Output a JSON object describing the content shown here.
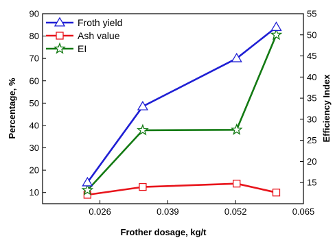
{
  "chart_data": {
    "type": "line",
    "title": "",
    "xlabel": "Frother dosage, kg/t",
    "ylabel": "Percentage, %",
    "y2label": "Efficiency Index",
    "xlim": [
      0.015,
      0.065
    ],
    "ylim": [
      5,
      90
    ],
    "y2lim": [
      10,
      55
    ],
    "x_ticks": [
      0.026,
      0.039,
      0.052,
      0.065
    ],
    "x_tick_labels": [
      "0.026",
      "0.039",
      "0.052",
      "0.065"
    ],
    "y_ticks": [
      10,
      20,
      30,
      40,
      50,
      60,
      70,
      80,
      90
    ],
    "y_tick_labels": [
      "10",
      "20",
      "30",
      "40",
      "50",
      "60",
      "70",
      "80",
      "90"
    ],
    "y2_ticks": [
      15,
      20,
      25,
      30,
      35,
      40,
      45,
      50,
      55
    ],
    "y2_tick_labels": [
      "15",
      "20",
      "25",
      "30",
      "35",
      "40",
      "45",
      "50",
      "55"
    ],
    "grid": false,
    "legend_position": "top-left",
    "x": [
      0.0236,
      0.0342,
      0.0522,
      0.0598
    ],
    "series": [
      {
        "name": "Froth yield",
        "axis": "left",
        "values": [
          14.5,
          48.5,
          70,
          84
        ],
        "color": "#1f1fd4",
        "marker": "triangle"
      },
      {
        "name": "Ash value",
        "axis": "left",
        "values": [
          9,
          12.5,
          14,
          10
        ],
        "color": "#e8141b",
        "marker": "square"
      },
      {
        "name": "EI",
        "axis": "right",
        "values": [
          13.2,
          27.4,
          27.5,
          50.0
        ],
        "color": "#137a13",
        "marker": "star"
      }
    ]
  }
}
